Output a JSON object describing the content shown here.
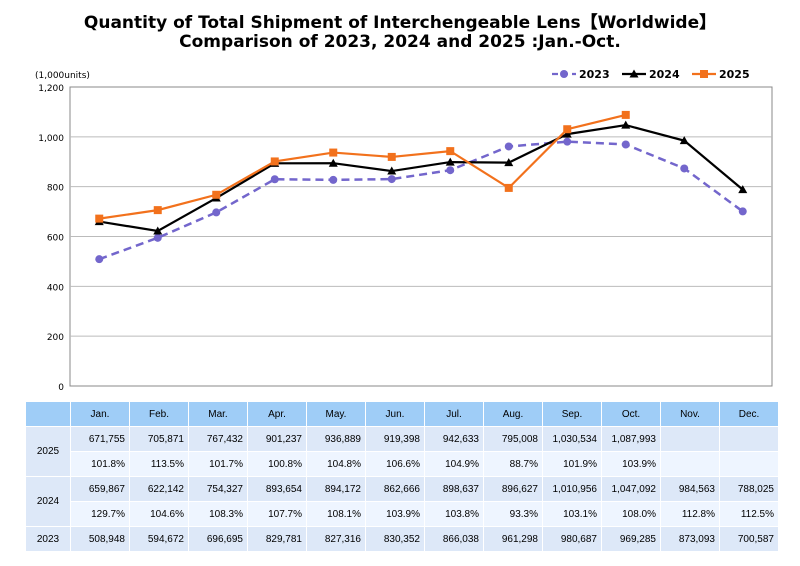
{
  "chart_data": {
    "type": "line",
    "title": [
      "Quantity of Total Shipment of Interchengeable Lens【Worldwide】",
      "Comparison of 2023, 2024 and 2025 :Jan.-Oct."
    ],
    "ylabel": "(1,000units)",
    "ylim": [
      0,
      1200
    ],
    "yticks": [
      "0",
      "200",
      "400",
      "600",
      "800",
      "1,000",
      "1,200"
    ],
    "grid": true,
    "legend": "top-right",
    "categories": [
      "Jan.",
      "Feb.",
      "Mar.",
      "Apr.",
      "May.",
      "Jun.",
      "Jul.",
      "Aug.",
      "Sep.",
      "Oct.",
      "Nov.",
      "Dec."
    ],
    "series": [
      {
        "name": "2023",
        "color": "#7366cc",
        "marker": "circle",
        "dash": true,
        "values": [
          508.948,
          594.672,
          696.695,
          829.781,
          827.316,
          830.352,
          866.038,
          961.298,
          980.687,
          969.285,
          873.093,
          700.587
        ]
      },
      {
        "name": "2024",
        "color": "#000000",
        "marker": "triangle",
        "dash": false,
        "values": [
          659.867,
          622.142,
          754.327,
          893.654,
          894.172,
          862.666,
          898.637,
          896.627,
          1010.956,
          1047.092,
          984.563,
          788.025
        ]
      },
      {
        "name": "2025",
        "color": "#f2711c",
        "marker": "square",
        "dash": false,
        "values": [
          671.755,
          705.871,
          767.432,
          901.237,
          936.889,
          919.398,
          942.633,
          795.008,
          1030.534,
          1087.993,
          null,
          null
        ]
      }
    ]
  },
  "table": {
    "headers": [
      "",
      "Jan.",
      "Feb.",
      "Mar.",
      "Apr.",
      "May.",
      "Jun.",
      "Jul.",
      "Aug.",
      "Sep.",
      "Oct.",
      "Nov.",
      "Dec."
    ],
    "rows": [
      {
        "year": "2025",
        "values": [
          "671,755",
          "705,871",
          "767,432",
          "901,237",
          "936,889",
          "919,398",
          "942,633",
          "795,008",
          "1,030,534",
          "1,087,993",
          "",
          ""
        ],
        "yoy": [
          "101.8%",
          "113.5%",
          "101.7%",
          "100.8%",
          "104.8%",
          "106.6%",
          "104.9%",
          "88.7%",
          "101.9%",
          "103.9%",
          "",
          ""
        ]
      },
      {
        "year": "2024",
        "values": [
          "659,867",
          "622,142",
          "754,327",
          "893,654",
          "894,172",
          "862,666",
          "898,637",
          "896,627",
          "1,010,956",
          "1,047,092",
          "984,563",
          "788,025"
        ],
        "yoy": [
          "129.7%",
          "104.6%",
          "108.3%",
          "107.7%",
          "108.1%",
          "103.9%",
          "103.8%",
          "93.3%",
          "103.1%",
          "108.0%",
          "112.8%",
          "112.5%"
        ]
      },
      {
        "year": "2023",
        "values": [
          "508,948",
          "594,672",
          "696,695",
          "829,781",
          "827,316",
          "830,352",
          "866,038",
          "961,298",
          "980,687",
          "969,285",
          "873,093",
          "700,587"
        ]
      }
    ]
  }
}
